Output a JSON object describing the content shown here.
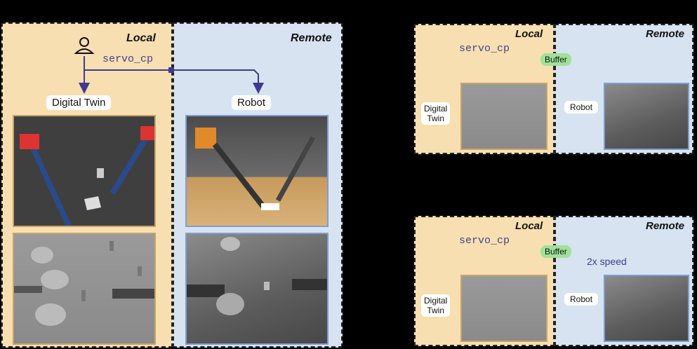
{
  "left": {
    "local_title": "Local",
    "remote_title": "Remote",
    "command": "servo_cp",
    "twin_label": "Digital Twin",
    "robot_label": "Robot"
  },
  "top_right": {
    "local_title": "Local",
    "remote_title": "Remote",
    "command": "servo_cp",
    "buffer_label": "Buffer",
    "twin_label_1": "Digital",
    "twin_label_2": "Twin",
    "robot_label": "Robot"
  },
  "bottom_right": {
    "local_title": "Local",
    "remote_title": "Remote",
    "command": "servo_cp",
    "buffer_label": "Buffer",
    "speed_label": "2x speed",
    "twin_label_1": "Digital",
    "twin_label_2": "Twin",
    "robot_label": "Robot"
  },
  "colors": {
    "local_bg": "#f7dfb2",
    "remote_bg": "#d7e3f1",
    "arrow": "#3f3a8f",
    "error": "#e53935",
    "buffer": "#9fe29a"
  }
}
